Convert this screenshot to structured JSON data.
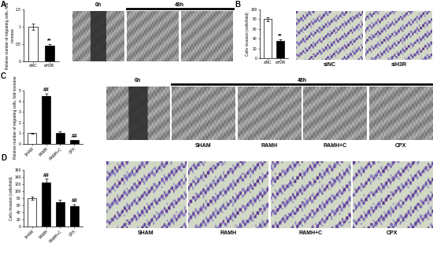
{
  "chart_data": [
    {
      "panel": "A",
      "type": "bar",
      "categories": [
        "siNC",
        "siH3R"
      ],
      "values": [
        1.0,
        0.45
      ],
      "errors": [
        0.1,
        0.05
      ],
      "colors": [
        "#ffffff",
        "#000000"
      ],
      "ylabel": "Relative number of migrating cells, fold increase",
      "ylim": [
        0,
        1.5
      ],
      "yticks": [
        0,
        0.5,
        1,
        1.5
      ],
      "annotations": [
        {
          "category": "siH3R",
          "text": "**"
        }
      ]
    },
    {
      "panel": "B",
      "type": "bar",
      "categories": [
        "siNC",
        "siH3R"
      ],
      "values": [
        80,
        36
      ],
      "errors": [
        4,
        3
      ],
      "colors": [
        "#ffffff",
        "#000000"
      ],
      "ylabel": "Cells invasion (cells/field)",
      "ylim": [
        0,
        100
      ],
      "yticks": [
        0,
        20,
        40,
        60,
        80,
        100
      ],
      "annotations": [
        {
          "category": "siH3R",
          "text": "**"
        }
      ]
    },
    {
      "panel": "C",
      "type": "bar",
      "categories": [
        "SHAM",
        "RAMH",
        "RAMH+C",
        "CPX"
      ],
      "values": [
        1.0,
        4.5,
        1.05,
        0.35
      ],
      "errors": [
        0.05,
        0.2,
        0.15,
        0.05
      ],
      "colors": [
        "#ffffff",
        "#000000",
        "#000000",
        "#000000"
      ],
      "ylabel": "Relative number of migrating cells, fold increase",
      "ylim": [
        0,
        5
      ],
      "yticks": [
        0,
        1,
        2,
        3,
        4,
        5
      ],
      "annotations": [
        {
          "category": "RAMH",
          "text": "##"
        },
        {
          "category": "CPX",
          "text": "##"
        }
      ]
    },
    {
      "panel": "D",
      "type": "bar",
      "categories": [
        "SHAM",
        "RAMH",
        "RAMH+C",
        "CPX"
      ],
      "values": [
        80,
        125,
        70,
        58
      ],
      "errors": [
        5,
        10,
        5,
        4
      ],
      "colors": [
        "#ffffff",
        "#000000",
        "#000000",
        "#000000"
      ],
      "ylabel": "Cells invasion (cells/field)",
      "ylim": [
        0,
        160
      ],
      "yticks": [
        0,
        20,
        40,
        60,
        80,
        100,
        120,
        140,
        160
      ],
      "annotations": [
        {
          "category": "RAMH",
          "text": "##"
        },
        {
          "category": "CPX",
          "text": "##"
        }
      ]
    }
  ],
  "image_panels": [
    {
      "panel": "A",
      "kind": "wound",
      "time_labels": [
        "0h",
        "48h"
      ],
      "image_labels": [
        null,
        null,
        null
      ]
    },
    {
      "panel": "B",
      "kind": "transwell",
      "time_labels": [],
      "image_labels": [
        "siNC",
        "siH3R"
      ]
    },
    {
      "panel": "C",
      "kind": "wound",
      "time_labels": [
        "0h",
        "48h"
      ],
      "image_labels": [
        null,
        "SHAM",
        "RAMH",
        "RAMH+C",
        "CPX"
      ]
    },
    {
      "panel": "D",
      "kind": "transwell",
      "time_labels": [],
      "image_labels": [
        "SHAM",
        "RAMH",
        "RAMH+C",
        "CPX"
      ]
    }
  ]
}
